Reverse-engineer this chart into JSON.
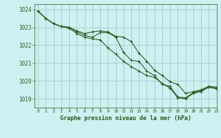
{
  "background_color": "#cdf0f0",
  "grid_color": "#9ecece",
  "line_color": "#2d5a1b",
  "title": "Graphe pression niveau de la mer (hPa)",
  "ylim": [
    1018.5,
    1024.3
  ],
  "xlim": [
    -0.5,
    23
  ],
  "yticks": [
    1019,
    1020,
    1021,
    1022,
    1023,
    1024
  ],
  "xticks": [
    0,
    1,
    2,
    3,
    4,
    5,
    6,
    7,
    8,
    9,
    10,
    11,
    12,
    13,
    14,
    15,
    16,
    17,
    18,
    19,
    20,
    21,
    22,
    23
  ],
  "series": [
    [
      1023.9,
      1023.5,
      1023.2,
      1023.05,
      1023.0,
      1022.8,
      1022.65,
      1022.75,
      1022.8,
      1022.75,
      1022.5,
      1022.45,
      1022.2,
      1021.55,
      1021.1,
      1020.6,
      1020.3,
      1019.95,
      1019.8,
      1019.3,
      1019.4,
      1019.5,
      1019.7,
      1019.65
    ],
    [
      1023.9,
      1023.5,
      1023.2,
      1023.05,
      1023.0,
      1022.75,
      1022.55,
      1022.45,
      1022.7,
      1022.7,
      1022.45,
      1021.6,
      1021.15,
      1021.1,
      1020.55,
      1020.3,
      1019.8,
      1019.7,
      1019.1,
      1019.05,
      1019.35,
      1019.45,
      1019.65,
      1019.6
    ],
    [
      1023.9,
      1023.5,
      1023.2,
      1023.05,
      1022.95,
      1022.65,
      1022.45,
      1022.35,
      1022.3,
      1021.85,
      1021.5,
      1021.1,
      1020.8,
      1020.55,
      1020.3,
      1020.2,
      1019.85,
      1019.6,
      1019.05,
      1019.0,
      1019.3,
      1019.4,
      1019.65,
      1019.55
    ]
  ]
}
